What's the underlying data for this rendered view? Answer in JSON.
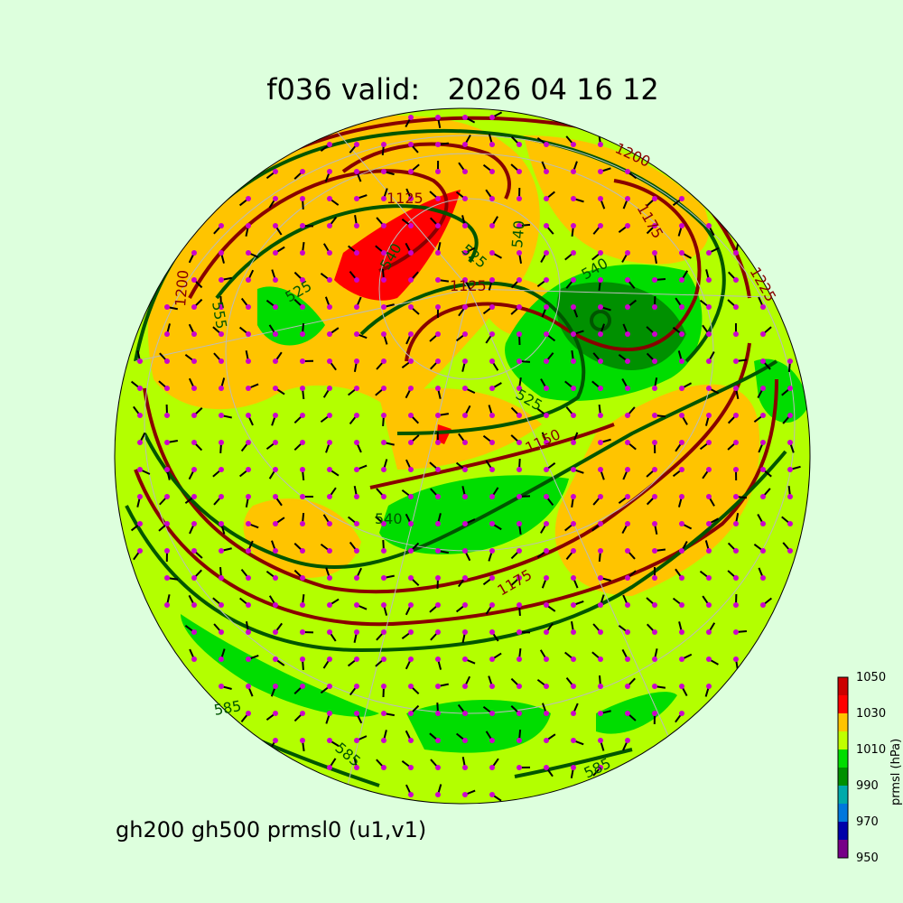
{
  "title": "f036 valid:   2026 04 16 12",
  "subtitle": "gh200 gh500 prmsl0 (u1,v1)",
  "colorbar": {
    "label": "prmsl (hPa)",
    "ticks": [
      "1050",
      "1030",
      "1010",
      "990",
      "970",
      "950"
    ],
    "colors": [
      "#cc0000",
      "#ff0000",
      "#ffc400",
      "#c0ff00",
      "#00dd00",
      "#009000",
      "#00aaaa",
      "#0077dd",
      "#0000aa",
      "#770088"
    ]
  },
  "colors": {
    "background": "#ddffdd",
    "gh200": "#880000",
    "gh500": "#005500",
    "wind_dots": "#cc00cc"
  },
  "gh200_labels": [
    "1200",
    "1175",
    "1125",
    "1150",
    "1125",
    "1225",
    "1200",
    "1175"
  ],
  "gh500_labels": [
    "540",
    "525",
    "540",
    "525",
    "555",
    "540",
    "585",
    "585",
    "585",
    "540",
    "525"
  ]
}
